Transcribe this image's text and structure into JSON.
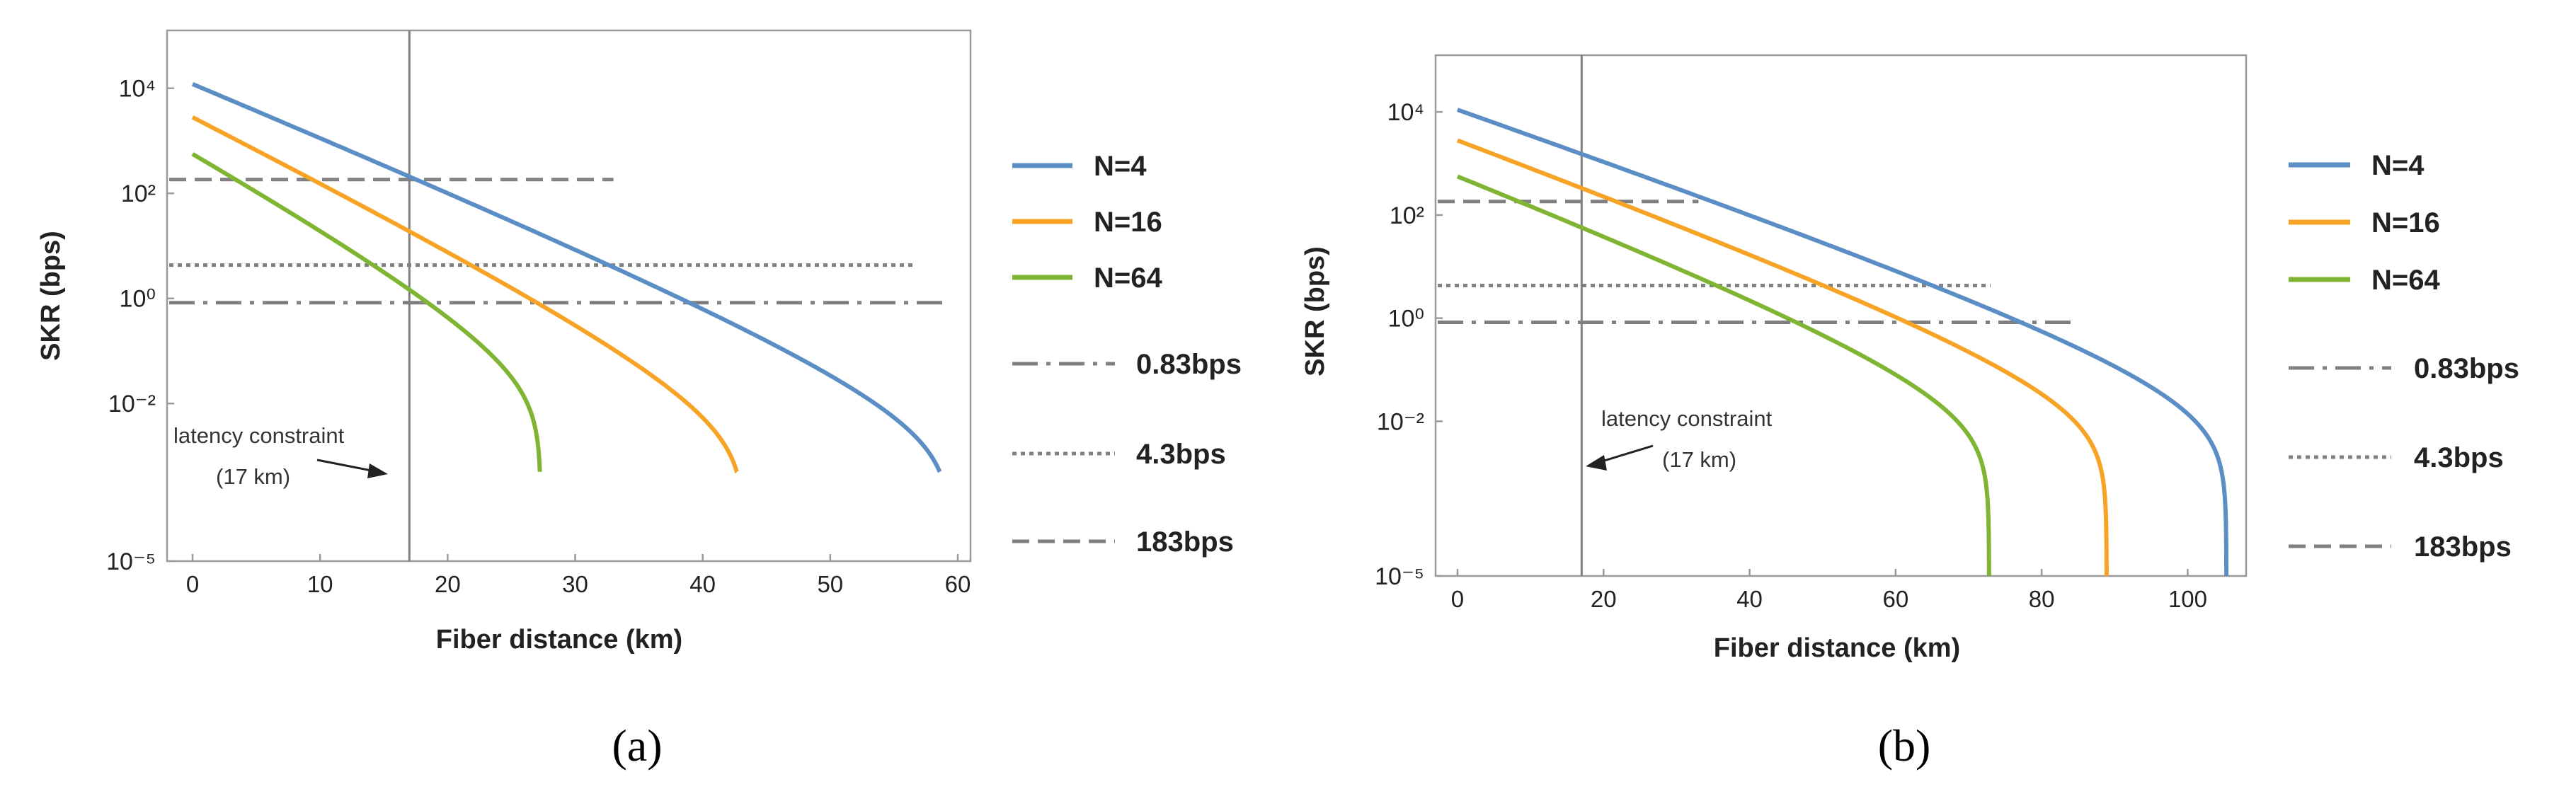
{
  "figure": {
    "panels": [
      "(a)",
      "(b)"
    ]
  },
  "colors": {
    "n4": "#5b8ec5",
    "n16": "#f7a325",
    "n64": "#7fb532",
    "threshold": "#808080",
    "latency": "#7f7f7f",
    "frame": "#9a9a9a"
  },
  "legend": {
    "series": [
      "N=4",
      "N=16",
      "N=64"
    ],
    "thresholds": [
      "0.83bps",
      "4.3bps",
      "183bps"
    ]
  },
  "chart_data": [
    {
      "type": "line",
      "panel": "(a)",
      "xlabel": "Fiber distance (km)",
      "ylabel": "SKR (bps)",
      "xlim": [
        -2,
        61
      ],
      "xticks": [
        0,
        10,
        20,
        30,
        40,
        50,
        60
      ],
      "ylim_log10": [
        -5,
        5.1
      ],
      "yticks_log10": [
        4,
        2,
        0,
        -2,
        -5
      ],
      "series": [
        {
          "name": "N=4",
          "y0": 12000,
          "slope_db_per_km": 0.95,
          "cutoff_km": 59.5
        },
        {
          "name": "N=16",
          "y0": 2800,
          "slope_db_per_km": 1.15,
          "cutoff_km": 43.3
        },
        {
          "name": "N=64",
          "y0": 560,
          "slope_db_per_km": 1.27,
          "cutoff_km": 27.3
        }
      ],
      "curve_floor_log10": -3.3,
      "thresholds": [
        {
          "name": "0.83bps",
          "value": 0.83,
          "style": "dash-dot",
          "x_end": 59
        },
        {
          "name": "4.3bps",
          "value": 4.3,
          "style": "dotted",
          "x_end": 56.5
        },
        {
          "name": "183bps",
          "value": 183,
          "style": "dashed",
          "x_end": 33
        }
      ],
      "latency_constraint": {
        "x": 17,
        "text": "latency constraint",
        "subtext": "(17 km)"
      }
    },
    {
      "type": "line",
      "panel": "(b)",
      "xlabel": "Fiber distance (km)",
      "ylabel": "SKR (bps)",
      "xlim": [
        -3,
        108
      ],
      "xticks": [
        0,
        20,
        40,
        60,
        80,
        100
      ],
      "ylim_log10": [
        -5,
        5.1
      ],
      "yticks_log10": [
        4,
        2,
        0,
        -2,
        -5
      ],
      "series": [
        {
          "name": "N=4",
          "y0": 11000,
          "slope_db_per_km": 0.46,
          "cutoff_km": 105.3
        },
        {
          "name": "N=16",
          "y0": 2800,
          "slope_db_per_km": 0.49,
          "cutoff_km": 88.9
        },
        {
          "name": "N=64",
          "y0": 560,
          "slope_db_per_km": 0.515,
          "cutoff_km": 72.8
        }
      ],
      "curve_floor_log10": -5,
      "thresholds": [
        {
          "name": "0.83bps",
          "value": 0.83,
          "style": "dash-dot",
          "x_end": 84
        },
        {
          "name": "4.3bps",
          "value": 4.3,
          "style": "dotted",
          "x_end": 73
        },
        {
          "name": "183bps",
          "value": 183,
          "style": "dashed",
          "x_end": 33
        }
      ],
      "latency_constraint": {
        "x": 17,
        "text": "latency constraint",
        "subtext": "(17 km)"
      }
    }
  ]
}
